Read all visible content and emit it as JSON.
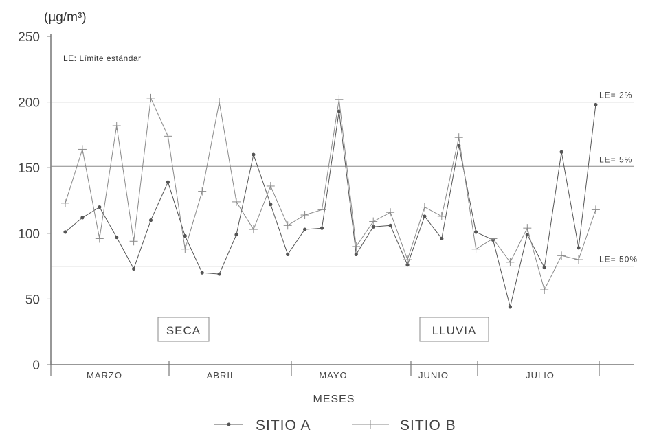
{
  "chart_data": {
    "type": "line",
    "title": "",
    "ylabel": "(µg/m³)",
    "xlabel": "MESES",
    "ylim": [
      0,
      250
    ],
    "yticks": [
      "0",
      "50",
      "100",
      "150",
      "200",
      "250"
    ],
    "categories": [
      "MARZO",
      "ABRIL",
      "MAYO",
      "JUNIO",
      "JULIO"
    ],
    "note": "LE: Límite estándar",
    "reference_lines": [
      {
        "label": "LE= 2%",
        "value": 200
      },
      {
        "label": "LE= 5%",
        "value": 151
      },
      {
        "label": "LE= 50%",
        "value": 75
      }
    ],
    "seasons": [
      {
        "label": "SECA"
      },
      {
        "label": "LLUVIA"
      }
    ],
    "legend_position": "bottom",
    "series": [
      {
        "name": "SITIO A",
        "color": "#555555",
        "marker": "dot",
        "points": [
          [
            1,
            101
          ],
          [
            2,
            112
          ],
          [
            3,
            120
          ],
          [
            4,
            97
          ],
          [
            5,
            73
          ],
          [
            6,
            110
          ],
          [
            7,
            139
          ],
          [
            8,
            98
          ],
          [
            9,
            70
          ],
          [
            10,
            69
          ],
          [
            11,
            99
          ],
          [
            12,
            160
          ],
          [
            13,
            122
          ],
          [
            14,
            84
          ],
          [
            15,
            103
          ],
          [
            16,
            104
          ],
          [
            17,
            193
          ],
          [
            18,
            84
          ],
          [
            19,
            105
          ],
          [
            20,
            106
          ],
          [
            21,
            76
          ],
          [
            22,
            113
          ],
          [
            23,
            96
          ],
          [
            24,
            167
          ],
          [
            25,
            101
          ],
          [
            26,
            95
          ],
          [
            27,
            44
          ],
          [
            28,
            99
          ],
          [
            29,
            74
          ],
          [
            30,
            162
          ],
          [
            31,
            89
          ],
          [
            32,
            198
          ]
        ]
      },
      {
        "name": "SITIO B",
        "color": "#8a8a8a",
        "marker": "cross",
        "points": [
          [
            1,
            123
          ],
          [
            2,
            164
          ],
          [
            3,
            96
          ],
          [
            4,
            182
          ],
          [
            5,
            94
          ],
          [
            6,
            203
          ],
          [
            7,
            174
          ],
          [
            8,
            88
          ],
          [
            9,
            132
          ],
          [
            10,
            200
          ],
          [
            11,
            124
          ],
          [
            12,
            103
          ],
          [
            13,
            136
          ],
          [
            14,
            106
          ],
          [
            15,
            114
          ],
          [
            16,
            118
          ],
          [
            17,
            202
          ],
          [
            18,
            90
          ],
          [
            19,
            109
          ],
          [
            20,
            116
          ],
          [
            21,
            80
          ],
          [
            22,
            120
          ],
          [
            23,
            113
          ],
          [
            24,
            173
          ],
          [
            25,
            88
          ],
          [
            26,
            96
          ],
          [
            27,
            78
          ],
          [
            28,
            104
          ],
          [
            29,
            57
          ],
          [
            30,
            83
          ],
          [
            31,
            80
          ],
          [
            32,
            118
          ]
        ]
      }
    ]
  }
}
